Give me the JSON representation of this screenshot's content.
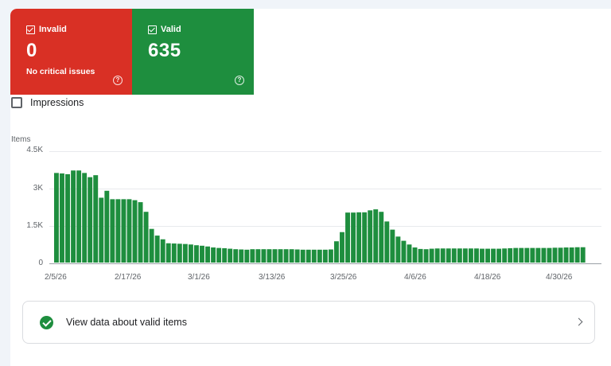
{
  "status_tiles": {
    "invalid": {
      "label": "Invalid",
      "value": "0",
      "subtitle": "No critical issues"
    },
    "valid": {
      "label": "Valid",
      "value": "635"
    }
  },
  "impressions_toggle": {
    "label": "Impressions",
    "checked": false
  },
  "chart_data": {
    "type": "bar",
    "ylabel": "Items",
    "ylim": [
      0,
      4500
    ],
    "y_ticks": [
      "0",
      "1.5K",
      "3K",
      "4.5K"
    ],
    "x_tick_labels": [
      "2/5/26",
      "2/17/26",
      "3/1/26",
      "3/13/26",
      "3/25/26",
      "4/6/26",
      "4/18/26",
      "4/30/26"
    ],
    "first_date": "2/5/26",
    "series": [
      {
        "color": "#1e8e3e",
        "values": [
          3620,
          3600,
          3570,
          3720,
          3720,
          3620,
          3450,
          3530,
          2620,
          2900,
          2560,
          2560,
          2560,
          2560,
          2520,
          2440,
          2050,
          1360,
          1090,
          940,
          780,
          770,
          760,
          750,
          730,
          700,
          680,
          650,
          610,
          590,
          580,
          560,
          540,
          530,
          520,
          540,
          540,
          540,
          540,
          540,
          540,
          540,
          540,
          530,
          520,
          520,
          520,
          520,
          520,
          530,
          860,
          1230,
          2020,
          2020,
          2030,
          2030,
          2110,
          2150,
          2050,
          1660,
          1330,
          1050,
          880,
          730,
          610,
          550,
          540,
          560,
          570,
          570,
          570,
          570,
          570,
          570,
          570,
          570,
          560,
          560,
          560,
          560,
          570,
          580,
          590,
          590,
          590,
          590,
          590,
          590,
          590,
          600,
          600,
          610,
          610,
          620,
          620
        ]
      }
    ]
  },
  "valid_items_link": {
    "label": "View data about valid items"
  }
}
